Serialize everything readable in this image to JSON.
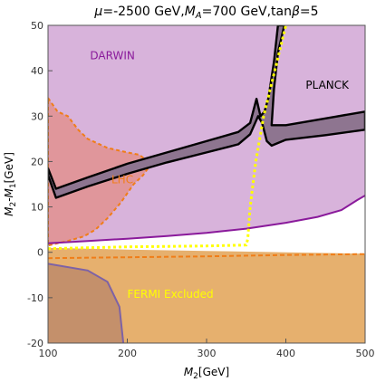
{
  "title": {
    "mu_sym": "μ",
    "mu_part": "=-2500 GeV,",
    "ma_sym": "M",
    "ma_sub": "A",
    "ma_part": "=700 GeV,tan",
    "beta_sym": "β",
    "beta_part": "=5"
  },
  "xlabel": {
    "main": "M",
    "sub": "2",
    "unit": "[GeV]"
  },
  "ylabel": {
    "main": "M",
    "sub1": "2",
    "mid": "-M",
    "sub2": "1",
    "unit": "[GeV]"
  },
  "chart_data": {
    "type": "area",
    "xlim": [
      100,
      500
    ],
    "ylim": [
      -20,
      50
    ],
    "x_ticks": [
      100,
      200,
      300,
      400,
      500
    ],
    "x_tick_labels": [
      "100",
      "200",
      "300",
      "400",
      "500"
    ],
    "y_ticks": [
      -20,
      -10,
      0,
      10,
      20,
      30,
      40,
      50
    ],
    "y_tick_labels": [
      "-20",
      "-10",
      "0",
      "10",
      "20",
      "30",
      "40",
      "50"
    ],
    "grid": false,
    "colors": {
      "darwin_fill": "#d8b3db",
      "darwin_line": "#8a1a9b",
      "fermi_fill": "#e6b06e",
      "fermi_line": "#f07d18",
      "lhc_fill": "#e2918f",
      "lhc_line": "#f07d18",
      "planck_fill": "#8e7590",
      "planck_line": "#000000",
      "bottom_fill": "#c4906b",
      "bottom_line": "#7d62a6",
      "yellow_line": "#ffff00"
    },
    "regions": [
      {
        "name": "DARWIN",
        "label": "DARWIN",
        "label_at": [
          153,
          42.5
        ],
        "boundary": [
          [
            100,
            2.0
          ],
          [
            150,
            2.5
          ],
          [
            200,
            3.0
          ],
          [
            250,
            3.6
          ],
          [
            300,
            4.3
          ],
          [
            350,
            5.2
          ],
          [
            400,
            6.5
          ],
          [
            440,
            7.8
          ],
          [
            470,
            9.3
          ],
          [
            490,
            11.5
          ],
          [
            500,
            12.5
          ]
        ]
      },
      {
        "name": "FERMI Excluded",
        "label": "FERMI Excluded",
        "label_at": [
          200,
          -10
        ],
        "boundary": [
          [
            100,
            1.0
          ],
          [
            150,
            0.8
          ],
          [
            200,
            0.6
          ],
          [
            300,
            0.3
          ],
          [
            400,
            0.0
          ],
          [
            500,
            -0.3
          ]
        ]
      },
      {
        "name": "LHC",
        "label": "LHC",
        "label_at": [
          180,
          15.2
        ],
        "boundary": [
          [
            100,
            34
          ],
          [
            112,
            31
          ],
          [
            125,
            30
          ],
          [
            138,
            27
          ],
          [
            150,
            25
          ],
          [
            175,
            23
          ],
          [
            200,
            22
          ],
          [
            215,
            21.5
          ],
          [
            230,
            19.5
          ],
          [
            220,
            17
          ],
          [
            208,
            15
          ],
          [
            192,
            11
          ],
          [
            175,
            7.5
          ],
          [
            160,
            5
          ],
          [
            145,
            3.5
          ],
          [
            125,
            2.5
          ],
          [
            100,
            1.5
          ]
        ]
      },
      {
        "name": "PLANCK",
        "label": "PLANCK",
        "label_at": [
          425,
          36
        ],
        "upper": [
          [
            100,
            18.5
          ],
          [
            110,
            14
          ],
          [
            150,
            16.5
          ],
          [
            200,
            19.5
          ],
          [
            250,
            22
          ],
          [
            300,
            24.5
          ],
          [
            340,
            26.5
          ],
          [
            355,
            28.5
          ],
          [
            363,
            33.8
          ],
          [
            368,
            30
          ],
          [
            373,
            31
          ],
          [
            378,
            34
          ],
          [
            385,
            42
          ],
          [
            390,
            50
          ],
          [
            398,
            50
          ],
          [
            390,
            44
          ],
          [
            385,
            36
          ],
          [
            382,
            28
          ],
          [
            400,
            28
          ],
          [
            450,
            29.5
          ],
          [
            500,
            31
          ]
        ],
        "lower": [
          [
            100,
            17
          ],
          [
            110,
            12
          ],
          [
            150,
            14.5
          ],
          [
            200,
            17.3
          ],
          [
            250,
            19.8
          ],
          [
            300,
            22
          ],
          [
            340,
            23.8
          ],
          [
            355,
            26
          ],
          [
            365,
            30
          ],
          [
            370,
            28.5
          ],
          [
            376,
            24.5
          ],
          [
            382,
            23.5
          ],
          [
            400,
            24.8
          ],
          [
            450,
            25.8
          ],
          [
            500,
            27
          ]
        ]
      },
      {
        "name": "bottom-left",
        "boundary": [
          [
            100,
            -2.5
          ],
          [
            150,
            -4
          ],
          [
            175,
            -6.5
          ],
          [
            190,
            -12
          ],
          [
            195,
            -20
          ]
        ]
      }
    ],
    "curves": [
      {
        "name": "yellow-dotted",
        "points": [
          [
            100,
            0.8
          ],
          [
            200,
            1.2
          ],
          [
            300,
            1.4
          ],
          [
            350,
            1.6
          ],
          [
            352,
            3
          ],
          [
            355,
            10
          ],
          [
            362,
            20
          ],
          [
            372,
            30
          ],
          [
            386,
            40
          ],
          [
            400,
            50
          ]
        ]
      },
      {
        "name": "orange-dashed",
        "points": [
          [
            100,
            -1.3
          ],
          [
            200,
            -1.1
          ],
          [
            300,
            -0.9
          ],
          [
            400,
            -0.6
          ],
          [
            500,
            -0.4
          ]
        ]
      }
    ]
  }
}
